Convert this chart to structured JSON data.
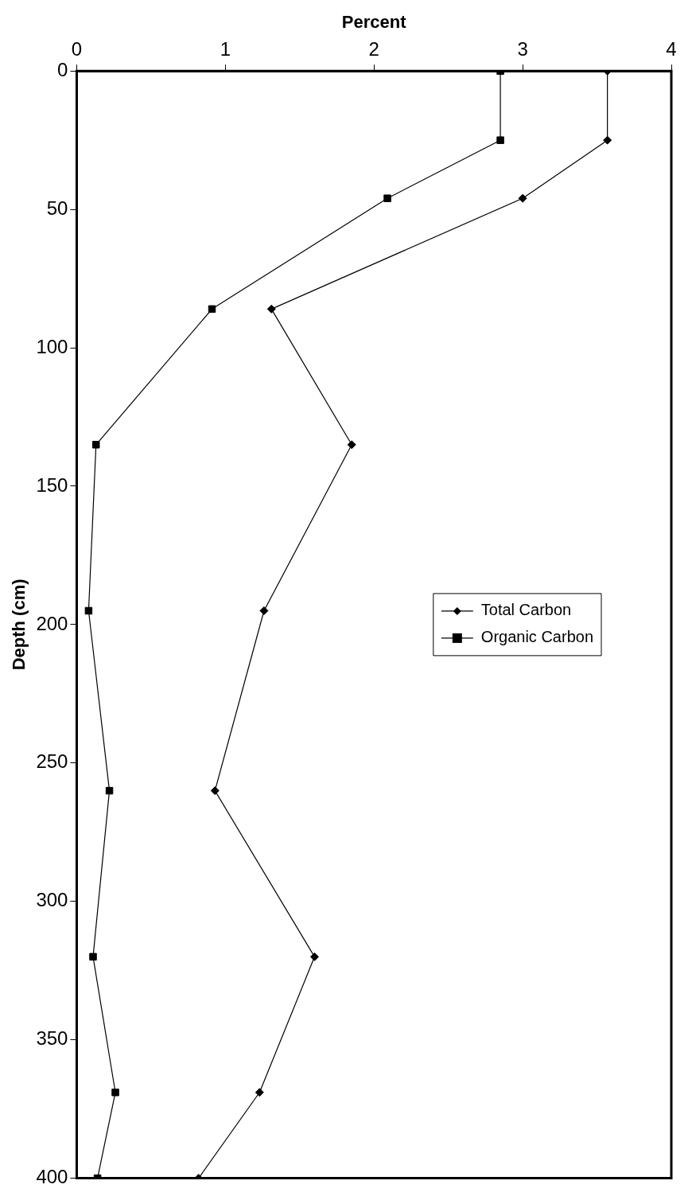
{
  "chart_data": {
    "type": "line",
    "xlabel": "Percent",
    "ylabel": "Depth (cm)",
    "xlim": [
      0,
      4
    ],
    "xticks": [
      0,
      1,
      2,
      3,
      4
    ],
    "ylim": [
      400,
      0
    ],
    "yticks": [
      0,
      50,
      100,
      150,
      200,
      250,
      300,
      350,
      400
    ],
    "grid": false,
    "legend": "right",
    "line_style": "solid",
    "series": [
      {
        "name": "Total Carbon",
        "color": "#000000",
        "marker": "diamond",
        "x": [
          3.57,
          3.57,
          3.0,
          1.31,
          1.85,
          1.26,
          0.93,
          1.6,
          1.23,
          0.82
        ],
        "values": [
          0,
          25,
          46,
          86,
          135,
          195,
          260,
          320,
          369,
          400
        ]
      },
      {
        "name": "Organic Carbon",
        "color": "#000000",
        "marker": "square",
        "x": [
          2.85,
          2.85,
          2.09,
          0.91,
          0.13,
          0.08,
          0.22,
          0.11,
          0.26,
          0.14
        ],
        "values": [
          0,
          25,
          46,
          86,
          135,
          195,
          260,
          320,
          369,
          400
        ]
      }
    ]
  }
}
